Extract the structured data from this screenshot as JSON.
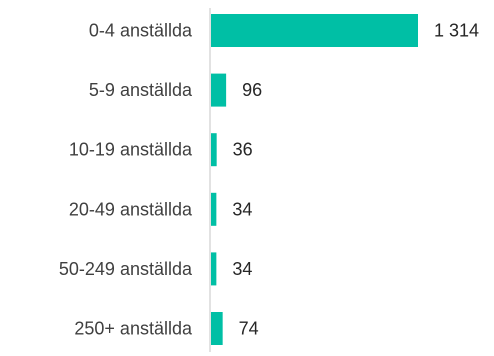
{
  "chart_data": {
    "type": "bar",
    "orientation": "horizontal",
    "categories": [
      "0-4 anställda",
      "5-9 anställda",
      "10-19 anställda",
      "20-49 anställda",
      "50-249 anställda",
      "250+ anställda"
    ],
    "values": [
      1314,
      96,
      36,
      34,
      34,
      74
    ],
    "value_labels": [
      "1 314",
      "96",
      "36",
      "34",
      "34",
      "74"
    ],
    "xlim": [
      0,
      1314
    ],
    "bar_color": "#00bfa5",
    "axis_color": "#d9d9d9",
    "grid": false,
    "legend": "none"
  }
}
